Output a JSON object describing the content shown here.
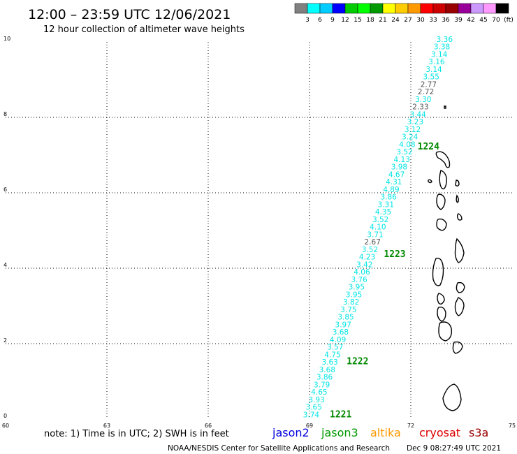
{
  "header": {
    "title": "12:00 – 23:59 UTC 12/06/2021",
    "subtitle": "12 hour collection of altimeter wave heights"
  },
  "scale": {
    "colors": [
      "#808080",
      "#00ffff",
      "#00ccff",
      "#0000ff",
      "#00cc00",
      "#00ff00",
      "#009900",
      "#ffff00",
      "#ffcc00",
      "#ff9900",
      "#ff0000",
      "#cc0000",
      "#990000",
      "#990099",
      "#cc99ff",
      "#ff99ff",
      "#000000"
    ],
    "labels": [
      "3",
      "6",
      "9",
      "12",
      "15",
      "18",
      "21",
      "24",
      "27",
      "30",
      "33",
      "36",
      "39",
      "42",
      "45",
      "70",
      "(ft)"
    ]
  },
  "axes": {
    "lon_min": 60,
    "lon_max": 75,
    "lat_min": 0,
    "lat_max": 10,
    "x_ticks": [
      "60",
      "63",
      "66",
      "69",
      "72",
      "75"
    ],
    "y_ticks": [
      "0",
      "2",
      "4",
      "6",
      "8",
      "10"
    ]
  },
  "track": {
    "color": "#00e5e5",
    "gray_color": "#555555",
    "lat_start": 0.05,
    "lat_end": 10.0,
    "lon_start": 69.05,
    "lon_end": 73.0,
    "values": [
      "3.74",
      "3.65",
      "3.93",
      "4.65",
      "3.79",
      "3.86",
      "3.68",
      "3.63",
      "4.75",
      "3.57",
      "4.09",
      "3.68",
      "3.97",
      "3.85",
      "3.75",
      "3.82",
      "3.95",
      "3.95",
      "3.76",
      "4.06",
      "3.42",
      "4.23",
      "3.52",
      "2.67",
      "3.71",
      "4.10",
      "3.52",
      "4.35",
      "3.31",
      "3.86",
      "4.89",
      "4.31",
      "4.67",
      "3.98",
      "4.13",
      "3.52",
      "4.08",
      "3.24",
      "3.12",
      "3.23",
      "3.44",
      "2.33",
      "3.30",
      "2.72",
      "2.77",
      "3.55",
      "3.14",
      "3.16",
      "3.14",
      "3.38",
      "3.36"
    ],
    "gray_values": [
      "2.67",
      "2.33",
      "2.72",
      "2.77"
    ]
  },
  "time_labels": [
    {
      "text": "1221",
      "lat": 0.05,
      "lon": 69.6
    },
    {
      "text": "1222",
      "lat": 1.45,
      "lon": 70.1
    },
    {
      "text": "1223",
      "lat": 4.3,
      "lon": 71.2
    },
    {
      "text": "1224",
      "lat": 7.15,
      "lon": 72.2
    }
  ],
  "footer": {
    "note": "note: 1) Time is in UTC; 2) SWH is in feet",
    "satellites": [
      {
        "name": "jason2",
        "color": "#0000dd"
      },
      {
        "name": "jason3",
        "color": "#009900"
      },
      {
        "name": "altika",
        "color": "#ff9900"
      },
      {
        "name": "cryosat",
        "color": "#dd0000"
      },
      {
        "name": "s3a",
        "color": "#990000"
      }
    ],
    "credit": "NOAA/NESDIS Center for Satellite Applications and Research",
    "timestamp": "Dec  9 08:27:49 UTC 2021"
  }
}
